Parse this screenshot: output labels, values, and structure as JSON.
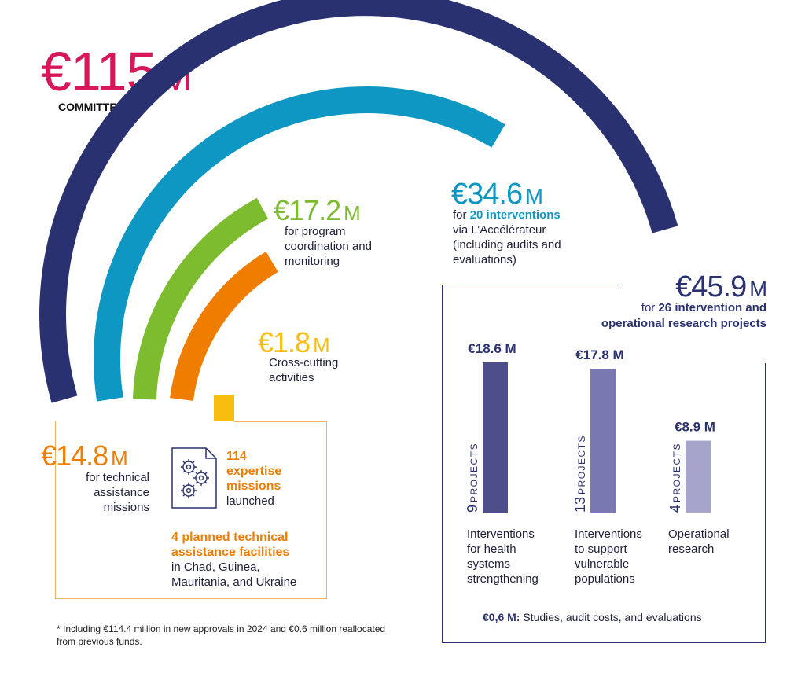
{
  "colors": {
    "committed": "#d6175a",
    "navy": "#2a3170",
    "blue": "#0f97c4",
    "green": "#7dbb2f",
    "orange": "#ef7d00",
    "yellow": "#f9bd10",
    "bar1": "#4e4f8a",
    "bar2": "#7a78b0",
    "bar3": "#a7a4cc"
  },
  "committed": {
    "amount": "€115",
    "unit": "M",
    "label": "COMMITTED*"
  },
  "chart_data": [
    {
      "type": "radial-bar",
      "total": 115,
      "unit": "€ M",
      "series": [
        {
          "label": "for program coordination and monitoring",
          "value": 17.2
        },
        {
          "label": "for 20 interventions via L'Accélérateur (including audits and evaluations)",
          "value": 34.6
        },
        {
          "label": "Cross-cutting activities",
          "value": 1.8
        },
        {
          "label": "for technical assistance missions",
          "value": 14.8
        },
        {
          "label": "for 26 intervention and operational research projects",
          "value": 45.9
        }
      ]
    },
    {
      "type": "bar",
      "unit": "€ M",
      "categories": [
        "Interventions for health systems strengthening",
        "Interventions to support vulnerable populations",
        "Operational research"
      ],
      "values": [
        18.6,
        17.8,
        8.9
      ],
      "projects": [
        9,
        13,
        4
      ],
      "ylim": [
        0,
        18.6
      ]
    }
  ],
  "labels": {
    "interventions": {
      "amount": "€34.6",
      "unit": "M",
      "pre": "for ",
      "bold": "20 interventions",
      "line2": "via L’Accélérateur",
      "line3": "(including audits and",
      "line4": "evaluations)"
    },
    "coordination": {
      "amount": "€17.2",
      "unit": "M",
      "line1": "for program",
      "line2": "coordination and",
      "line3": "monitoring"
    },
    "crosscutting": {
      "amount": "€1.8",
      "unit": "M",
      "line1": "Cross-cutting",
      "line2": "activities"
    },
    "technical": {
      "amount": "€14.8",
      "unit": "M",
      "line1": "for technical",
      "line2": "assistance",
      "line3": "missions"
    },
    "missions": {
      "count": "114",
      "line1": "expertise",
      "line2": "missions",
      "line3": "launched"
    },
    "facilities": {
      "line1": "4 planned technical",
      "line2": "assistance facilities",
      "line3": "in Chad, Guinea,",
      "line4": "Mauritania, and Ukraine"
    },
    "research": {
      "amount": "€45.9",
      "unit": "M",
      "pre": "for ",
      "bold1": "26 intervention and",
      "bold2": "operational research projects"
    }
  },
  "bars": [
    {
      "value_label": "€18.6 M",
      "count": "9",
      "projects_word": "PROJECTS",
      "desc": [
        "Interventions",
        "for health",
        "systems",
        "strengthening"
      ]
    },
    {
      "value_label": "€17.8 M",
      "count": "13",
      "projects_word": "PROJECTS",
      "desc": [
        "Interventions",
        "to support",
        "vulnerable",
        "populations"
      ]
    },
    {
      "value_label": "€8.9 M",
      "count": "4",
      "projects_word": "PROJECTS",
      "desc": [
        "Operational",
        "research"
      ]
    }
  ],
  "studies": {
    "bold": "€0,6 M:",
    "text": " Studies, audit costs, and evaluations"
  },
  "footnote": {
    "line1": "* Including €114.4 million in new approvals in 2024 and €0.6 million reallocated",
    "line2": "from previous funds."
  }
}
